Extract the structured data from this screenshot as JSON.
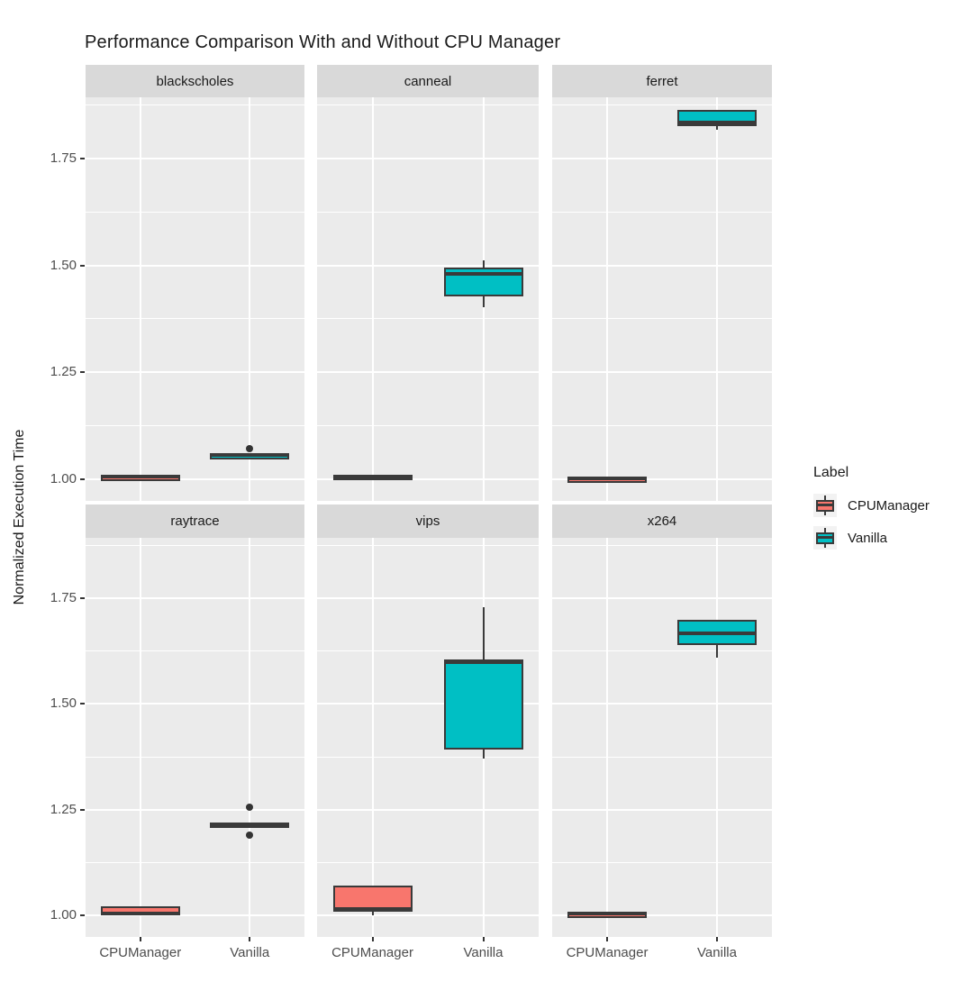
{
  "title": "Performance Comparison With and Without CPU Manager",
  "axes": {
    "y_label": "Normalized Execution Time",
    "y_tick_labels": [
      "1.00",
      "1.25",
      "1.50",
      "1.75"
    ],
    "x_categories": [
      "CPUManager",
      "Vanilla"
    ]
  },
  "legend": {
    "title": "Label",
    "items": [
      {
        "label": "CPUManager",
        "color": "#F8766D"
      },
      {
        "label": "Vanilla",
        "color": "#00BFC4"
      }
    ]
  },
  "colors": {
    "cpumanager_fill": "#F8766D",
    "vanilla_fill": "#00BFC4",
    "box_border": "#3A3A3A",
    "panel_background": "#EBEBEB",
    "strip_background": "#D9D9D9",
    "gridline": "#FFFFFF",
    "axis_text": "#4D4D4D",
    "legend_key_background": "#F2F2F2"
  },
  "chart_data": {
    "type": "boxplot",
    "title": "Performance Comparison With and Without CPU Manager",
    "xlabel": "",
    "ylabel": "Normalized Execution Time",
    "ylim": [
      0.949,
      1.893
    ],
    "grid": true,
    "legend_position": "right",
    "y_major_ticks": [
      1.0,
      1.25,
      1.5,
      1.75
    ],
    "y_minor_gridlines": [
      1.125,
      1.375,
      1.625,
      1.875
    ],
    "x_categories": [
      "CPUManager",
      "Vanilla"
    ],
    "series_colors": {
      "CPUManager": "#F8766D",
      "Vanilla": "#00BFC4"
    },
    "facet_layout": [
      [
        "blackscholes",
        "canneal",
        "ferret"
      ],
      [
        "raytrace",
        "vips",
        "x264"
      ]
    ],
    "facets": [
      {
        "name": "blackscholes",
        "boxes": [
          {
            "group": "CPUManager",
            "whisker_low": 1.003,
            "q1": 1.003,
            "median": 1.005,
            "q3": 1.007,
            "whisker_high": 1.007,
            "outliers": []
          },
          {
            "group": "Vanilla",
            "whisker_low": 1.053,
            "q1": 1.054,
            "median": 1.056,
            "q3": 1.059,
            "whisker_high": 1.059,
            "outliers": [
              1.072
            ]
          }
        ]
      },
      {
        "name": "canneal",
        "boxes": [
          {
            "group": "CPUManager",
            "whisker_low": 1.0,
            "q1": 1.0,
            "median": 1.004,
            "q3": 1.01,
            "whisker_high": 1.01,
            "outliers": []
          },
          {
            "group": "Vanilla",
            "whisker_low": 1.402,
            "q1": 1.428,
            "median": 1.48,
            "q3": 1.495,
            "whisker_high": 1.512,
            "outliers": []
          }
        ]
      },
      {
        "name": "ferret",
        "boxes": [
          {
            "group": "CPUManager",
            "whisker_low": 0.999,
            "q1": 0.999,
            "median": 1.001,
            "q3": 1.003,
            "whisker_high": 1.003,
            "outliers": []
          },
          {
            "group": "Vanilla",
            "whisker_low": 1.818,
            "q1": 1.826,
            "median": 1.833,
            "q3": 1.864,
            "whisker_high": 1.864,
            "outliers": []
          }
        ]
      },
      {
        "name": "raytrace",
        "boxes": [
          {
            "group": "CPUManager",
            "whisker_low": 1.0,
            "q1": 1.0,
            "median": 1.004,
            "q3": 1.022,
            "whisker_high": 1.022,
            "outliers": []
          },
          {
            "group": "Vanilla",
            "whisker_low": 1.213,
            "q1": 1.213,
            "median": 1.216,
            "q3": 1.219,
            "whisker_high": 1.219,
            "outliers": [
              1.255,
              1.19
            ]
          }
        ]
      },
      {
        "name": "vips",
        "boxes": [
          {
            "group": "CPUManager",
            "whisker_low": 1.0,
            "q1": 1.008,
            "median": 1.014,
            "q3": 1.07,
            "whisker_high": 1.07,
            "outliers": []
          },
          {
            "group": "Vanilla",
            "whisker_low": 1.37,
            "q1": 1.392,
            "median": 1.598,
            "q3": 1.605,
            "whisker_high": 1.728,
            "outliers": []
          }
        ]
      },
      {
        "name": "x264",
        "boxes": [
          {
            "group": "CPUManager",
            "whisker_low": 1.002,
            "q1": 1.002,
            "median": 1.004,
            "q3": 1.007,
            "whisker_high": 1.007,
            "outliers": []
          },
          {
            "group": "Vanilla",
            "whisker_low": 1.61,
            "q1": 1.64,
            "median": 1.668,
            "q3": 1.7,
            "whisker_high": 1.7,
            "outliers": []
          }
        ]
      }
    ]
  }
}
